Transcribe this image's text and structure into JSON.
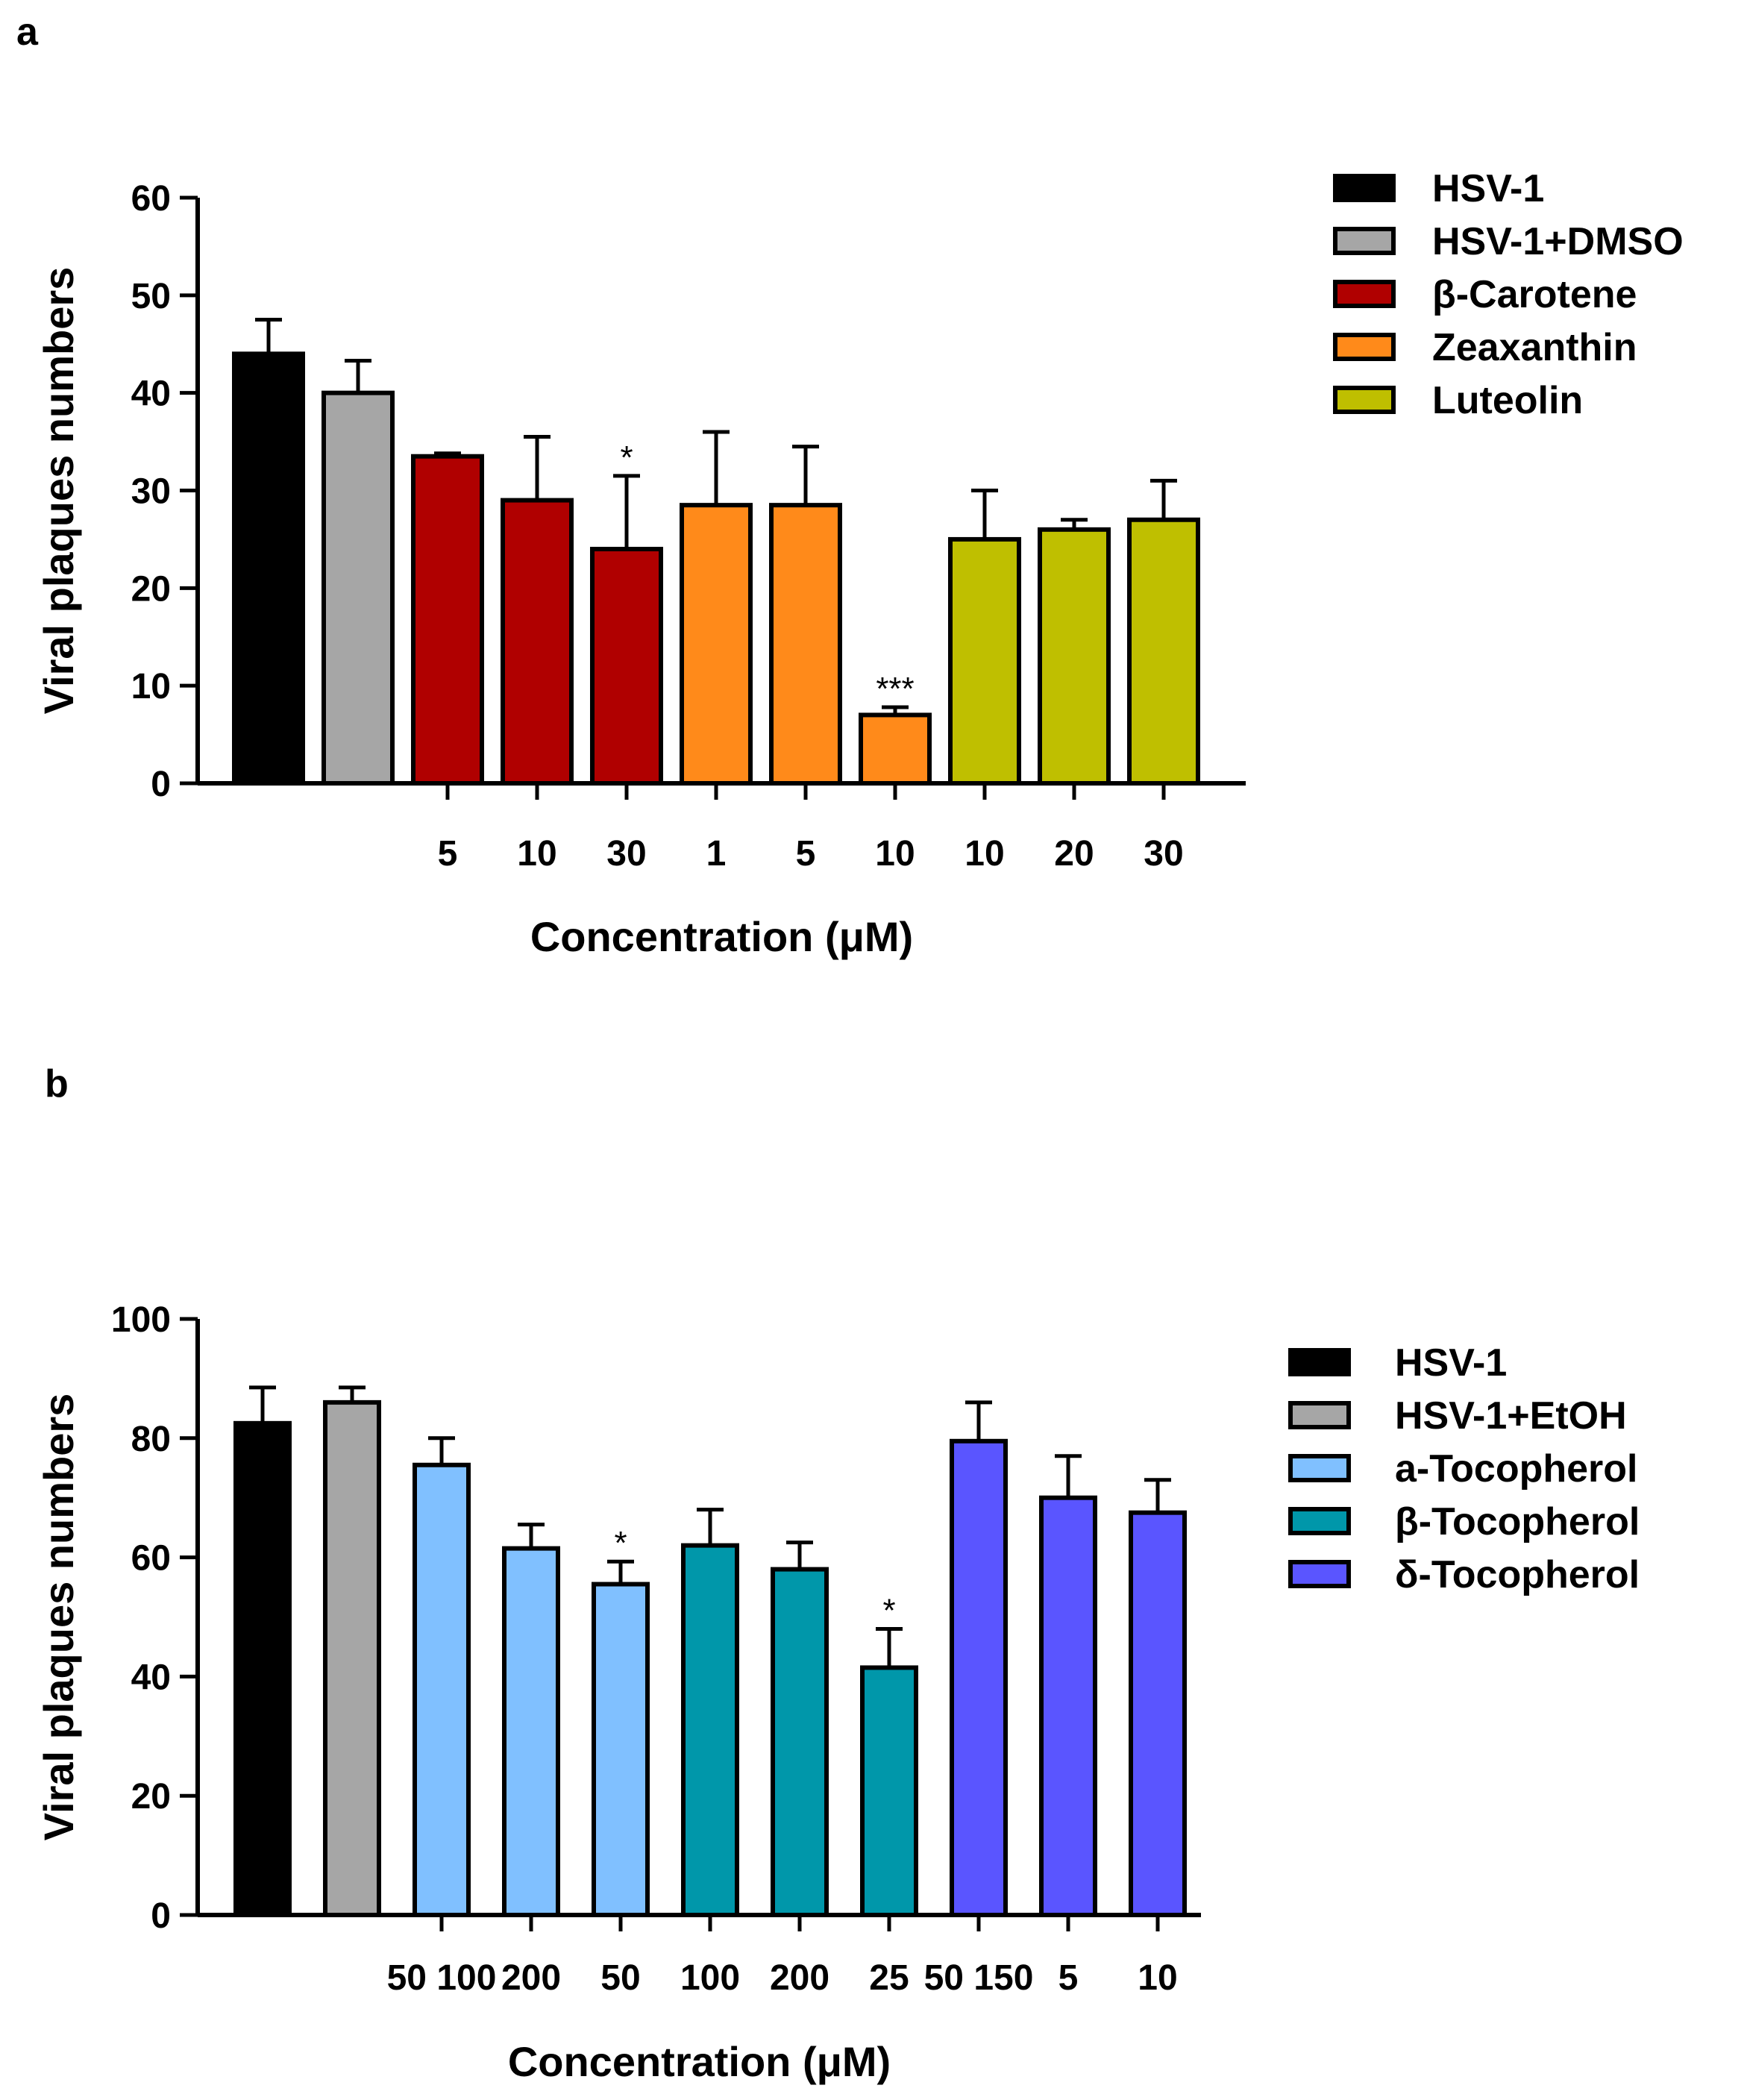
{
  "chart_data": [
    {
      "panel_label": "a",
      "type": "bar",
      "xlabel": "Concentration (μM)",
      "ylabel": "Viral plaques numbers",
      "ylim": [
        0,
        60
      ],
      "yticks": [
        0,
        10,
        20,
        30,
        40,
        50,
        60
      ],
      "legend_position": "top-right",
      "bars": [
        {
          "series": "HSV-1",
          "label": "",
          "value": 44,
          "error": 3.5,
          "sig": ""
        },
        {
          "series": "HSV-1+DMSO",
          "label": "",
          "value": 40,
          "error": 3.3,
          "sig": ""
        },
        {
          "series": "β-Carotene",
          "label": "5",
          "value": 33.5,
          "error": 0.3,
          "sig": ""
        },
        {
          "series": "β-Carotene",
          "label": "10",
          "value": 29,
          "error": 6.5,
          "sig": ""
        },
        {
          "series": "β-Carotene",
          "label": "30",
          "value": 24,
          "error": 7.5,
          "sig": "*"
        },
        {
          "series": "Zeaxanthin",
          "label": "1",
          "value": 28.5,
          "error": 7.5,
          "sig": ""
        },
        {
          "series": "Zeaxanthin",
          "label": "5",
          "value": 28.5,
          "error": 6,
          "sig": ""
        },
        {
          "series": "Zeaxanthin",
          "label": "10",
          "value": 7,
          "error": 0.8,
          "sig": "***"
        },
        {
          "series": "Luteolin",
          "label": "10",
          "value": 25,
          "error": 5,
          "sig": ""
        },
        {
          "series": "Luteolin",
          "label": "20",
          "value": 26,
          "error": 1,
          "sig": ""
        },
        {
          "series": "Luteolin",
          "label": "30",
          "value": 27,
          "error": 4,
          "sig": ""
        }
      ],
      "legend": [
        {
          "name": "HSV-1",
          "color": "#000000"
        },
        {
          "name": "HSV-1+DMSO",
          "color": "#a6a6a6"
        },
        {
          "name": "β-Carotene",
          "color": "#b00000"
        },
        {
          "name": "Zeaxanthin",
          "color": "#ff8a1a"
        },
        {
          "name": "Luteolin",
          "color": "#bfbf00"
        }
      ]
    },
    {
      "panel_label": "b",
      "type": "bar",
      "xlabel": "Concentration (μM)",
      "ylabel": "Viral plaques numbers",
      "ylim": [
        0,
        100
      ],
      "yticks": [
        0,
        20,
        40,
        60,
        80,
        100
      ],
      "legend_position": "right",
      "bars": [
        {
          "series": "HSV-1",
          "label": "",
          "value": 82.5,
          "error": 6,
          "sig": ""
        },
        {
          "series": "HSV-1+EtOH",
          "label": "",
          "value": 86,
          "error": 2.5,
          "sig": ""
        },
        {
          "series": "a-Tocopherol",
          "label": "50 100",
          "value": 75.5,
          "error": 4.5,
          "sig": ""
        },
        {
          "series": "a-Tocopherol",
          "label": "200",
          "value": 61.5,
          "error": 4,
          "sig": ""
        },
        {
          "series": "a-Tocopherol",
          "label": "50",
          "value": 55.5,
          "error": 3.8,
          "sig": "*"
        },
        {
          "series": "β-Tocopherol",
          "label": "100",
          "value": 62,
          "error": 6,
          "sig": ""
        },
        {
          "series": "β-Tocopherol",
          "label": "200",
          "value": 58,
          "error": 4.5,
          "sig": ""
        },
        {
          "series": "β-Tocopherol",
          "label": "25",
          "value": 41.5,
          "error": 6.5,
          "sig": "*"
        },
        {
          "series": "δ-Tocopherol",
          "label": "50 150",
          "value": 79.5,
          "error": 6.5,
          "sig": ""
        },
        {
          "series": "δ-Tocopherol",
          "label": "5",
          "value": 70,
          "error": 7,
          "sig": ""
        },
        {
          "series": "δ-Tocopherol",
          "label": "10",
          "value": 67.5,
          "error": 5.5,
          "sig": ""
        }
      ],
      "legend": [
        {
          "name": "HSV-1",
          "color": "#000000"
        },
        {
          "name": "HSV-1+EtOH",
          "color": "#a6a6a6"
        },
        {
          "name": "a-Tocopherol",
          "color": "#80c0ff"
        },
        {
          "name": "β-Tocopherol",
          "color": "#0097aa"
        },
        {
          "name": "δ-Tocopherol",
          "color": "#5a55ff"
        }
      ]
    }
  ]
}
